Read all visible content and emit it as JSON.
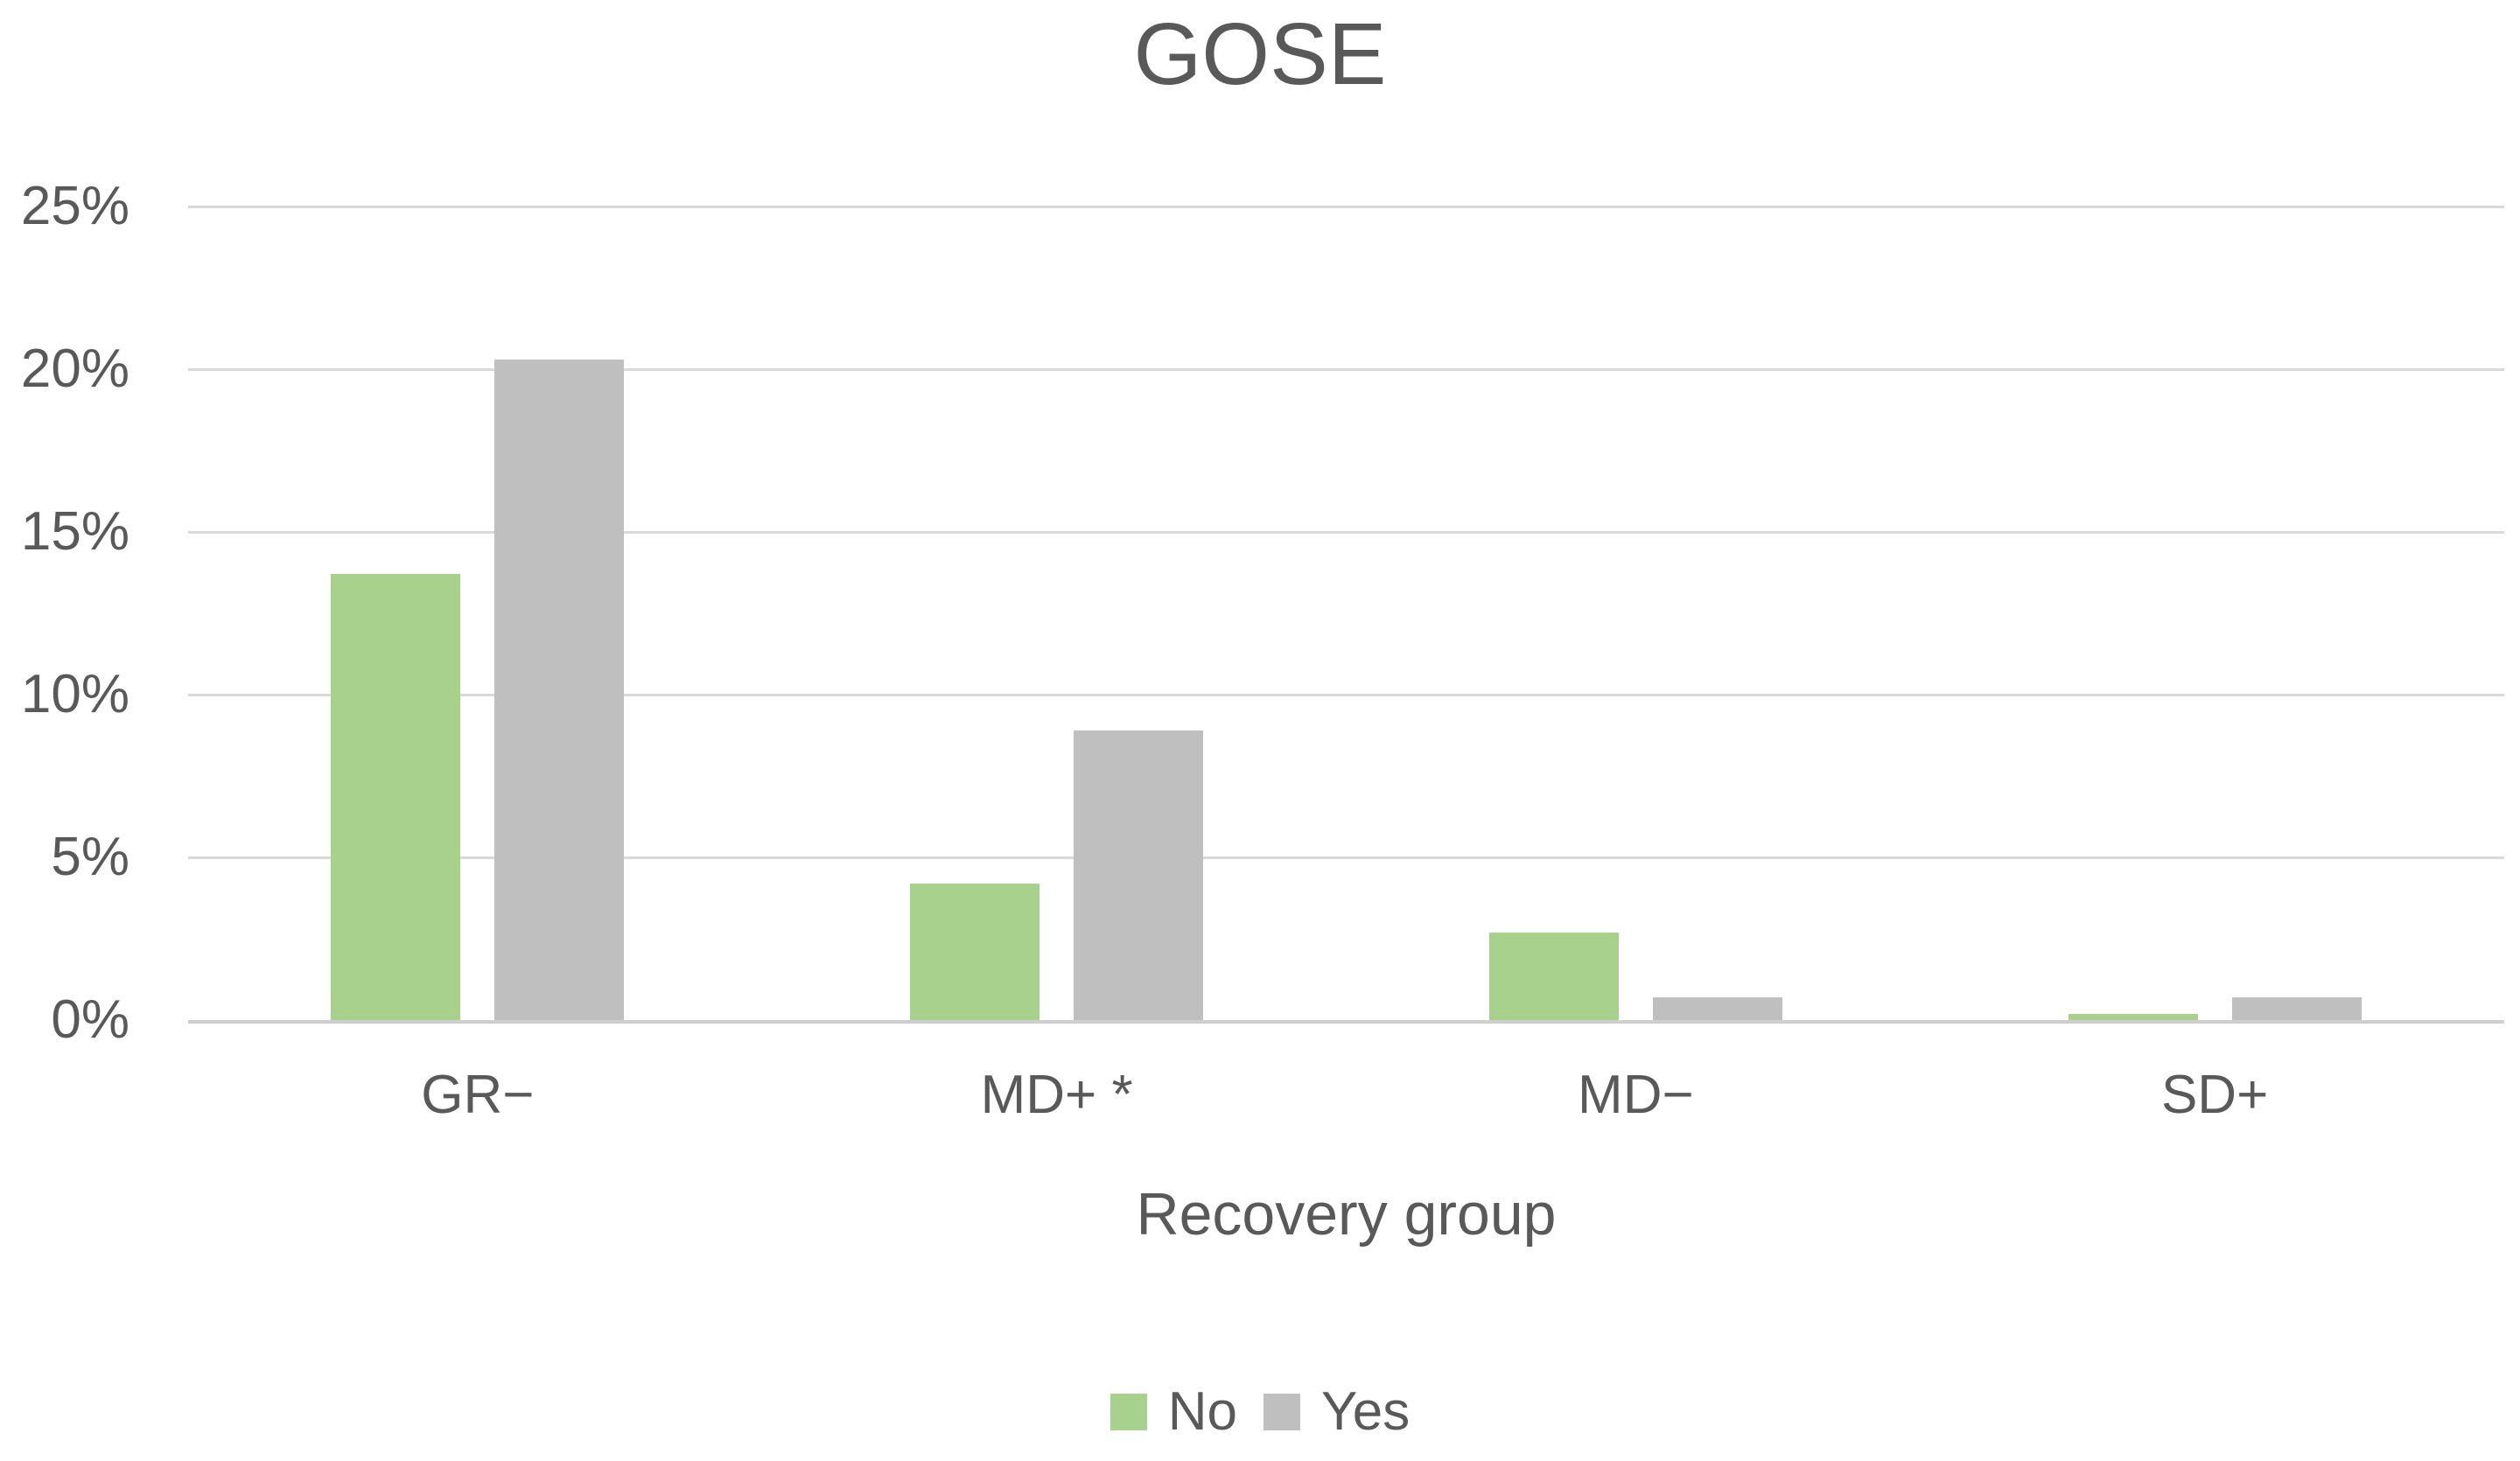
{
  "chart_data": {
    "type": "bar",
    "title": "GOSE",
    "categories": [
      "GR−",
      "MD+ *",
      "MD−",
      "SD+"
    ],
    "series": [
      {
        "name": "No",
        "color": "#A9D18E",
        "values": [
          13.7,
          4.2,
          2.7,
          0.2
        ]
      },
      {
        "name": "Yes",
        "color": "#BFBFBF",
        "values": [
          20.3,
          8.9,
          0.7,
          0.7
        ]
      }
    ],
    "xlabel": "Recovery group",
    "ylabel": "",
    "ylim": [
      0,
      25
    ],
    "ytick_step": 5,
    "ytick_labels": [
      "0%",
      "5%",
      "10%",
      "15%",
      "20%",
      "25%"
    ],
    "grid": true,
    "legend_position": "bottom"
  },
  "colors": {
    "text": "#595959",
    "gridline": "#D9D9D9",
    "axis_line": "#CFCFCF",
    "background": "#FFFFFF",
    "series_no": "#A9D18E",
    "series_yes": "#BFBFBF"
  }
}
